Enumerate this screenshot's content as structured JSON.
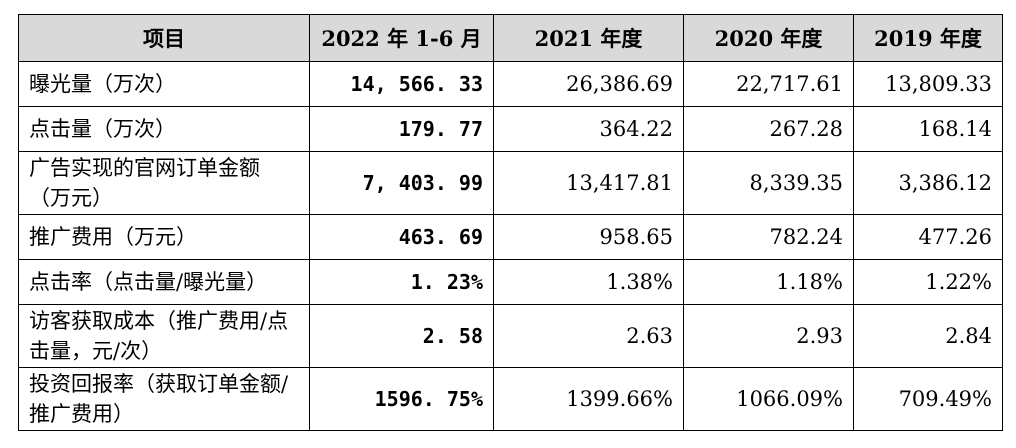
{
  "table": {
    "headers": [
      "项目",
      "2022 年 1-6 月",
      "2021 年度",
      "2020 年度",
      "2019 年度"
    ],
    "rows": [
      {
        "label": "曝光量（万次）",
        "values": [
          "14, 566. 33",
          "26,386.69",
          "22,717.61",
          "13,809.33"
        ]
      },
      {
        "label": "点击量（万次）",
        "values": [
          "179. 77",
          "364.22",
          "267.28",
          "168.14"
        ]
      },
      {
        "label": "广告实现的官网订单金额（万元）",
        "values": [
          "7, 403. 99",
          "13,417.81",
          "8,339.35",
          "3,386.12"
        ]
      },
      {
        "label": "推广费用（万元）",
        "values": [
          "463. 69",
          "958.65",
          "782.24",
          "477.26"
        ]
      },
      {
        "label": "点击率（点击量/曝光量）",
        "values": [
          "1. 23%",
          "1.38%",
          "1.18%",
          "1.22%"
        ]
      },
      {
        "label": "访客获取成本（推广费用/点击量，元/次）",
        "values": [
          "2. 58",
          "2.63",
          "2.93",
          "2.84"
        ]
      },
      {
        "label": "投资回报率（获取订单金额/推广费用）",
        "values": [
          "1596. 75%",
          "1399.66%",
          "1066.09%",
          "709.49%"
        ]
      }
    ]
  }
}
